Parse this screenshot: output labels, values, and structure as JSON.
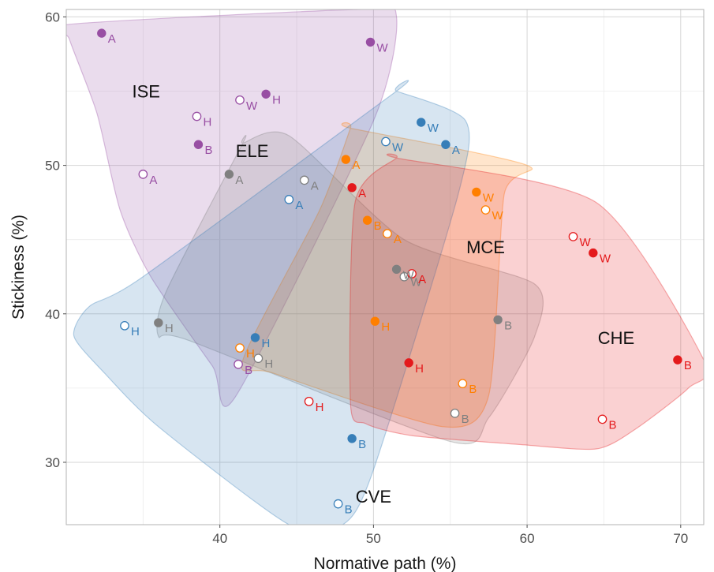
{
  "chart_data": {
    "type": "scatter",
    "xlabel": "Normative path (%)",
    "ylabel": "Stickiness (%)",
    "xlim": [
      30,
      71.5
    ],
    "ylim": [
      25.8,
      60.5
    ],
    "xticks": [
      40,
      50,
      60,
      70
    ],
    "yticks": [
      30,
      40,
      50,
      60
    ],
    "grid": true,
    "groups": [
      {
        "name": "ISE",
        "color": "#984ea3",
        "label_at": [
          35.2,
          55
        ],
        "hull": [
          [
            30.2,
            59.5
          ],
          [
            49,
            60.5
          ],
          [
            51.5,
            60
          ],
          [
            50,
            53
          ],
          [
            41,
            34.4
          ],
          [
            39.5,
            36.5
          ],
          [
            35.5,
            42.5
          ],
          [
            33.5,
            47
          ],
          [
            32,
            53.5
          ],
          [
            30.2,
            58.5
          ]
        ]
      },
      {
        "name": "ELE",
        "color": "#808080",
        "label_at": [
          42.1,
          51
        ],
        "hull": [
          [
            41.5,
            51.5
          ],
          [
            44.5,
            52
          ],
          [
            52,
            45
          ],
          [
            60.5,
            42
          ],
          [
            60.5,
            38.5
          ],
          [
            57.5,
            33
          ],
          [
            55,
            31.4
          ],
          [
            38,
            38.2
          ],
          [
            36,
            38.5
          ],
          [
            36.5,
            41.5
          ],
          [
            41.5,
            51.5
          ]
        ]
      },
      {
        "name": "MCE",
        "color": "#ff7f00",
        "label_at": [
          57.3,
          44.5
        ],
        "hull": [
          [
            48.5,
            52.5
          ],
          [
            60,
            50
          ],
          [
            58.5,
            48
          ],
          [
            57.5,
            34.5
          ],
          [
            54.5,
            32.4
          ],
          [
            43.5,
            36
          ],
          [
            41.5,
            36.9
          ],
          [
            46.5,
            47
          ],
          [
            48.5,
            52.5
          ]
        ]
      },
      {
        "name": "CVE",
        "color": "#377eb8",
        "label_at": [
          50,
          27.7
        ],
        "hull": [
          [
            51.5,
            55
          ],
          [
            56,
            53
          ],
          [
            55.5,
            48
          ],
          [
            50,
            29.5
          ],
          [
            48,
            25.8
          ],
          [
            44.5,
            25.8
          ],
          [
            36,
            32.4
          ],
          [
            32.5,
            36
          ],
          [
            30.5,
            38.5
          ],
          [
            31.5,
            40.5
          ],
          [
            35,
            42.5
          ],
          [
            51.5,
            55
          ]
        ]
      },
      {
        "name": "CHE",
        "color": "#e41a1c",
        "label_at": [
          65.8,
          38.4
        ],
        "hull": [
          [
            51.5,
            50.5
          ],
          [
            64.5,
            47.5
          ],
          [
            71.5,
            36.9
          ],
          [
            70.5,
            35
          ],
          [
            67,
            32.2
          ],
          [
            64.5,
            30.9
          ],
          [
            59.5,
            31.2
          ],
          [
            52.5,
            31.8
          ],
          [
            49.5,
            32.6
          ],
          [
            48.5,
            34
          ],
          [
            48.8,
            47.5
          ],
          [
            51.5,
            50.5
          ]
        ]
      }
    ],
    "points": [
      {
        "group": "ISE",
        "label": "A",
        "x": 32.3,
        "y": 58.9,
        "filled": true
      },
      {
        "group": "ISE",
        "label": "W",
        "x": 49.8,
        "y": 58.3,
        "filled": true
      },
      {
        "group": "ISE",
        "label": "H",
        "x": 43.0,
        "y": 54.8,
        "filled": true
      },
      {
        "group": "ISE",
        "label": "W",
        "x": 41.3,
        "y": 54.4,
        "filled": false
      },
      {
        "group": "ISE",
        "label": "H",
        "x": 38.5,
        "y": 53.3,
        "filled": false
      },
      {
        "group": "ISE",
        "label": "B",
        "x": 38.6,
        "y": 51.4,
        "filled": true
      },
      {
        "group": "ISE",
        "label": "A",
        "x": 35.0,
        "y": 49.4,
        "filled": false
      },
      {
        "group": "ISE",
        "label": "B",
        "x": 41.2,
        "y": 36.6,
        "filled": false
      },
      {
        "group": "ELE",
        "label": "A",
        "x": 40.6,
        "y": 49.4,
        "filled": true
      },
      {
        "group": "ELE",
        "label": "A",
        "x": 45.5,
        "y": 49.0,
        "filled": false
      },
      {
        "group": "ELE",
        "label": "H",
        "x": 36.0,
        "y": 39.4,
        "filled": true
      },
      {
        "group": "ELE",
        "label": "H",
        "x": 42.5,
        "y": 37.0,
        "filled": false
      },
      {
        "group": "ELE",
        "label": "W",
        "x": 51.5,
        "y": 43.0,
        "filled": true
      },
      {
        "group": "ELE",
        "label": "W",
        "x": 52.0,
        "y": 42.5,
        "filled": false
      },
      {
        "group": "ELE",
        "label": "B",
        "x": 58.1,
        "y": 39.6,
        "filled": true
      },
      {
        "group": "ELE",
        "label": "B",
        "x": 55.3,
        "y": 33.3,
        "filled": false
      },
      {
        "group": "MCE",
        "label": "A",
        "x": 48.2,
        "y": 50.4,
        "filled": true
      },
      {
        "group": "MCE",
        "label": "W",
        "x": 56.7,
        "y": 48.2,
        "filled": true
      },
      {
        "group": "MCE",
        "label": "W",
        "x": 57.3,
        "y": 47.0,
        "filled": false
      },
      {
        "group": "MCE",
        "label": "B",
        "x": 49.6,
        "y": 46.3,
        "filled": true
      },
      {
        "group": "MCE",
        "label": "A",
        "x": 50.9,
        "y": 45.4,
        "filled": false
      },
      {
        "group": "MCE",
        "label": "H",
        "x": 50.1,
        "y": 39.5,
        "filled": true
      },
      {
        "group": "MCE",
        "label": "H",
        "x": 41.3,
        "y": 37.7,
        "filled": false
      },
      {
        "group": "MCE",
        "label": "B",
        "x": 55.8,
        "y": 35.3,
        "filled": false
      },
      {
        "group": "CVE",
        "label": "W",
        "x": 53.1,
        "y": 52.9,
        "filled": true
      },
      {
        "group": "CVE",
        "label": "W",
        "x": 50.8,
        "y": 51.6,
        "filled": false
      },
      {
        "group": "CVE",
        "label": "A",
        "x": 54.7,
        "y": 51.4,
        "filled": true
      },
      {
        "group": "CVE",
        "label": "A",
        "x": 44.5,
        "y": 47.7,
        "filled": false
      },
      {
        "group": "CVE",
        "label": "H",
        "x": 33.8,
        "y": 39.2,
        "filled": false
      },
      {
        "group": "CVE",
        "label": "H",
        "x": 42.3,
        "y": 38.4,
        "filled": true
      },
      {
        "group": "CVE",
        "label": "B",
        "x": 48.6,
        "y": 31.6,
        "filled": true
      },
      {
        "group": "CVE",
        "label": "B",
        "x": 47.7,
        "y": 27.2,
        "filled": false
      },
      {
        "group": "CHE",
        "label": "A",
        "x": 48.6,
        "y": 48.5,
        "filled": true
      },
      {
        "group": "CHE",
        "label": "A",
        "x": 52.5,
        "y": 42.7,
        "filled": false
      },
      {
        "group": "CHE",
        "label": "W",
        "x": 63.0,
        "y": 45.2,
        "filled": false
      },
      {
        "group": "CHE",
        "label": "W",
        "x": 64.3,
        "y": 44.1,
        "filled": true
      },
      {
        "group": "CHE",
        "label": "H",
        "x": 52.3,
        "y": 36.7,
        "filled": true
      },
      {
        "group": "CHE",
        "label": "H",
        "x": 45.8,
        "y": 34.1,
        "filled": false
      },
      {
        "group": "CHE",
        "label": "B",
        "x": 69.8,
        "y": 36.9,
        "filled": true
      },
      {
        "group": "CHE",
        "label": "B",
        "x": 64.9,
        "y": 32.9,
        "filled": false
      }
    ]
  }
}
